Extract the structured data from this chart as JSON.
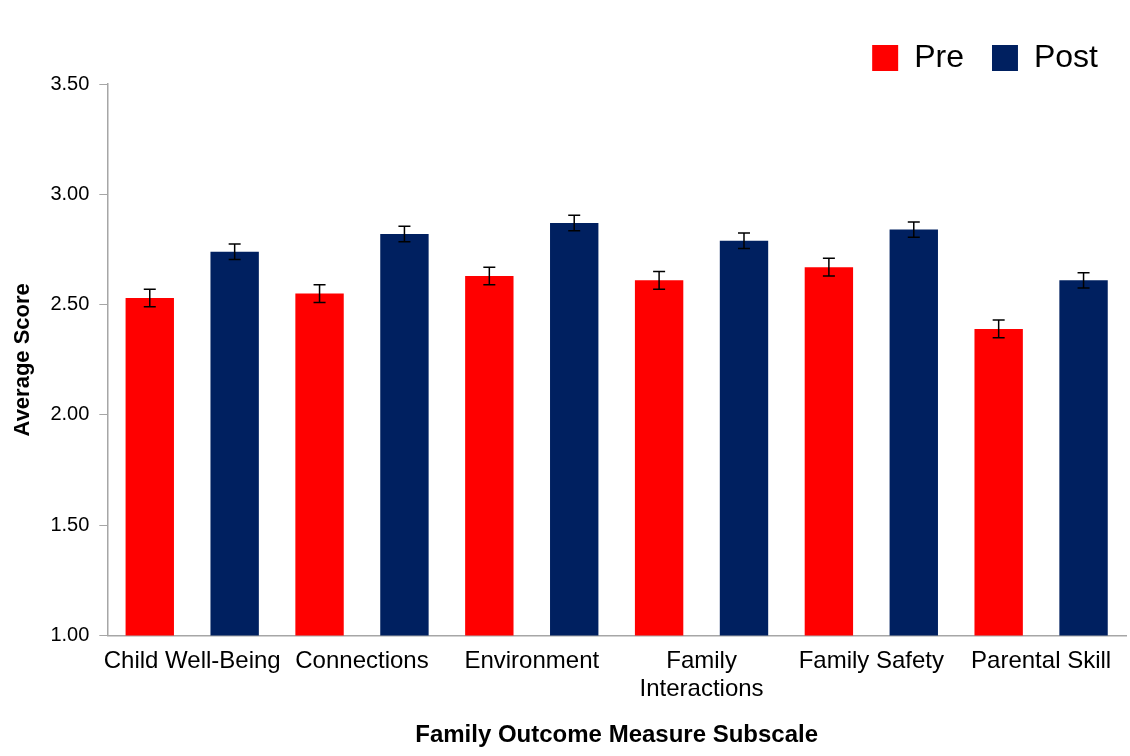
{
  "chart_data": {
    "type": "bar",
    "xlabel": "Family Outcome Measure Subscale",
    "ylabel": "Average Score",
    "categories": [
      "Child Well-Being",
      "Connections",
      "Environment",
      "Family Interactions",
      "Family Safety",
      "Parental Skill"
    ],
    "series": [
      {
        "name": "Pre",
        "color": "#ff0000",
        "values": [
          2.53,
          2.55,
          2.63,
          2.61,
          2.67,
          2.39
        ],
        "errors": [
          0.04,
          0.04,
          0.04,
          0.04,
          0.04,
          0.04
        ]
      },
      {
        "name": "Post",
        "color": "#002060",
        "values": [
          2.74,
          2.82,
          2.87,
          2.79,
          2.84,
          2.61
        ],
        "errors": [
          0.035,
          0.035,
          0.035,
          0.035,
          0.035,
          0.035
        ]
      }
    ],
    "ylim": [
      1,
      3.5
    ],
    "yticks": [
      {
        "value": 1,
        "label": "1.00"
      },
      {
        "value": 1.5,
        "label": "1.50"
      },
      {
        "value": 2,
        "label": "2.00"
      },
      {
        "value": 2.5,
        "label": "2.50"
      },
      {
        "value": 3,
        "label": "3.00"
      },
      {
        "value": 3.5,
        "label": "3.50"
      }
    ],
    "grid": false,
    "legend": "top right"
  }
}
